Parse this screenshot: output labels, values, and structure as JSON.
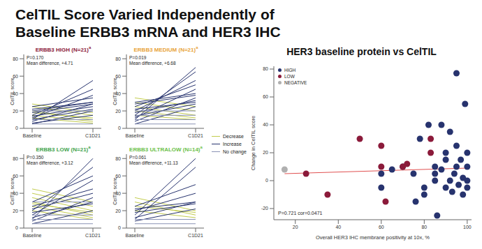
{
  "title": [
    "CelTIL Score Varied Independently of",
    "Baseline ERBB3 mRNA and HER3 IHC"
  ],
  "chart_data": [
    {
      "type": "line",
      "title": "ERBB3 HIGH (N=21)",
      "footnote": "a",
      "color": "#8b1a3a",
      "annotations": [
        "P=0.170",
        "Mean difference, +4.71"
      ],
      "x": [
        "Baseline",
        "C1D21"
      ],
      "ylabel": "CelTIL score",
      "ylim": [
        0,
        85
      ],
      "yticks": [
        0,
        20,
        40,
        60,
        80
      ],
      "series": [
        {
          "name": "Decrease",
          "color": "#c2cc4e",
          "values": [
            [
              20,
              10
            ],
            [
              25,
              15
            ],
            [
              15,
              8
            ],
            [
              28,
              18
            ],
            [
              12,
              6
            ],
            [
              18,
              12
            ]
          ]
        },
        {
          "name": "Increase",
          "color": "#27336e",
          "values": [
            [
              10,
              55
            ],
            [
              15,
              45
            ],
            [
              12,
              38
            ],
            [
              20,
              30
            ],
            [
              8,
              28
            ],
            [
              25,
              35
            ],
            [
              5,
              20
            ],
            [
              18,
              28
            ],
            [
              10,
              22
            ],
            [
              14,
              25
            ],
            [
              22,
              30
            ],
            [
              6,
              15
            ]
          ]
        },
        {
          "name": "No change",
          "color": "#8a92b5",
          "values": [
            [
              10,
              10
            ],
            [
              5,
              5
            ],
            [
              20,
              20
            ]
          ]
        }
      ]
    },
    {
      "type": "line",
      "title": "ERBB3 MEDIUM (N=21)",
      "footnote": "a",
      "color": "#e8a33a",
      "annotations": [
        "P=0.019",
        "Mean difference, +6.68"
      ],
      "x": [
        "Baseline",
        "C1D21"
      ],
      "ylabel": "CelTIL score",
      "ylim": [
        0,
        85
      ],
      "yticks": [
        0,
        20,
        40,
        60,
        80
      ],
      "series": [
        {
          "name": "Decrease",
          "color": "#c2cc4e",
          "values": [
            [
              20,
              12
            ],
            [
              30,
              20
            ],
            [
              25,
              15
            ],
            [
              15,
              10
            ],
            [
              35,
              25
            ]
          ]
        },
        {
          "name": "Increase",
          "color": "#27336e",
          "values": [
            [
              10,
              70
            ],
            [
              15,
              65
            ],
            [
              20,
              55
            ],
            [
              25,
              50
            ],
            [
              12,
              45
            ],
            [
              30,
              40
            ],
            [
              8,
              35
            ],
            [
              18,
              32
            ],
            [
              22,
              30
            ],
            [
              5,
              25
            ],
            [
              14,
              28
            ],
            [
              28,
              38
            ]
          ]
        },
        {
          "name": "No change",
          "color": "#8a92b5",
          "values": [
            [
              10,
              10
            ],
            [
              15,
              15
            ],
            [
              5,
              5
            ],
            [
              20,
              20
            ]
          ]
        }
      ]
    },
    {
      "type": "line",
      "title": "ERBB3 LOW (N=21)",
      "footnote": "a",
      "color": "#3fa34d",
      "annotations": [
        "P=0.350",
        "Mean difference, +3.12"
      ],
      "x": [
        "Baseline",
        "C1D21"
      ],
      "ylabel": "CelTIL score",
      "ylim": [
        0,
        85
      ],
      "yticks": [
        0,
        20,
        40,
        60,
        80
      ],
      "series": [
        {
          "name": "Decrease",
          "color": "#c2cc4e",
          "values": [
            [
              40,
              25
            ],
            [
              35,
              20
            ],
            [
              30,
              15
            ],
            [
              25,
              12
            ],
            [
              45,
              30
            ],
            [
              20,
              10
            ],
            [
              28,
              18
            ]
          ]
        },
        {
          "name": "Increase",
          "color": "#27336e",
          "values": [
            [
              10,
              80
            ],
            [
              20,
              70
            ],
            [
              15,
              55
            ],
            [
              30,
              60
            ],
            [
              25,
              45
            ],
            [
              8,
              35
            ],
            [
              12,
              30
            ],
            [
              18,
              28
            ],
            [
              22,
              40
            ],
            [
              5,
              20
            ]
          ]
        },
        {
          "name": "No change",
          "color": "#8a92b5",
          "values": [
            [
              10,
              10
            ],
            [
              5,
              5
            ],
            [
              15,
              15
            ],
            [
              30,
              30
            ]
          ]
        }
      ]
    },
    {
      "type": "line",
      "title": "ERBB3 ULTRALOW (N=14)",
      "footnote": "a",
      "color": "#6cbf4a",
      "annotations": [
        "P=0.061",
        "Mean difference, +11.13"
      ],
      "x": [
        "Baseline",
        "C1D21"
      ],
      "ylabel": "CelTIL score",
      "ylim": [
        0,
        85
      ],
      "yticks": [
        0,
        20,
        40,
        60,
        80
      ],
      "series": [
        {
          "name": "Decrease",
          "color": "#c2cc4e",
          "values": [
            [
              35,
              20
            ],
            [
              30,
              15
            ],
            [
              25,
              18
            ],
            [
              20,
              12
            ]
          ]
        },
        {
          "name": "Increase",
          "color": "#27336e",
          "values": [
            [
              15,
              80
            ],
            [
              10,
              70
            ],
            [
              25,
              50
            ],
            [
              20,
              40
            ],
            [
              12,
              30
            ],
            [
              18,
              28
            ],
            [
              8,
              22
            ],
            [
              22,
              30
            ]
          ]
        },
        {
          "name": "No change",
          "color": "#8a92b5",
          "values": [
            [
              10,
              10
            ],
            [
              5,
              5
            ]
          ]
        }
      ]
    },
    {
      "type": "scatter",
      "title": "HER3 baseline protein vs CelTIL",
      "xlabel": "Overall HER3 IHC membrane positivity at 10x, %",
      "ylabel": "Change in CelTIL score",
      "xlim": [
        10,
        102
      ],
      "xticks": [
        20,
        40,
        60,
        80,
        100
      ],
      "ylim": [
        -28,
        82
      ],
      "yticks": [
        -20,
        0,
        20,
        40,
        60,
        80
      ],
      "legend": "top-left",
      "annotations": [
        "P=0.721 cor=0.0471"
      ],
      "trend_line": {
        "color": "#e05050",
        "x": [
          15,
          100
        ],
        "y": [
          5,
          9
        ]
      },
      "series": [
        {
          "name": "HIGH",
          "color": "#27336e",
          "values": [
            [
              78,
              30
            ],
            [
              80,
              -5
            ],
            [
              80,
              -10
            ],
            [
              85,
              5
            ],
            [
              85,
              0
            ],
            [
              85,
              10
            ],
            [
              86,
              -25
            ],
            [
              88,
              8
            ],
            [
              88,
              40
            ],
            [
              90,
              -5
            ],
            [
              90,
              15
            ],
            [
              90,
              20
            ],
            [
              92,
              35
            ],
            [
              92,
              0
            ],
            [
              93,
              -8
            ],
            [
              94,
              5
            ],
            [
              95,
              77
            ],
            [
              95,
              25
            ],
            [
              95,
              10
            ],
            [
              96,
              -3
            ],
            [
              97,
              15
            ],
            [
              98,
              2
            ],
            [
              98,
              -10
            ],
            [
              99,
              55
            ],
            [
              100,
              20
            ],
            [
              100,
              10
            ],
            [
              100,
              -5
            ],
            [
              100,
              0
            ],
            [
              82,
              40
            ],
            [
              76,
              -15
            ],
            [
              75,
              5
            ],
            [
              70,
              10
            ],
            [
              65,
              8
            ],
            [
              60,
              -5
            ],
            [
              60,
              5
            ]
          ]
        },
        {
          "name": "LOW",
          "color": "#8b1a3a",
          "values": [
            [
              25,
              5
            ],
            [
              35,
              -10
            ],
            [
              50,
              30
            ],
            [
              60,
              25
            ],
            [
              60,
              10
            ],
            [
              62,
              -15
            ],
            [
              70,
              10
            ],
            [
              72,
              12
            ],
            [
              83,
              30
            ],
            [
              83,
              20
            ]
          ]
        },
        {
          "name": "NEGATIVE",
          "color": "#b0b0b0",
          "values": [
            [
              15,
              8
            ]
          ]
        }
      ]
    }
  ]
}
